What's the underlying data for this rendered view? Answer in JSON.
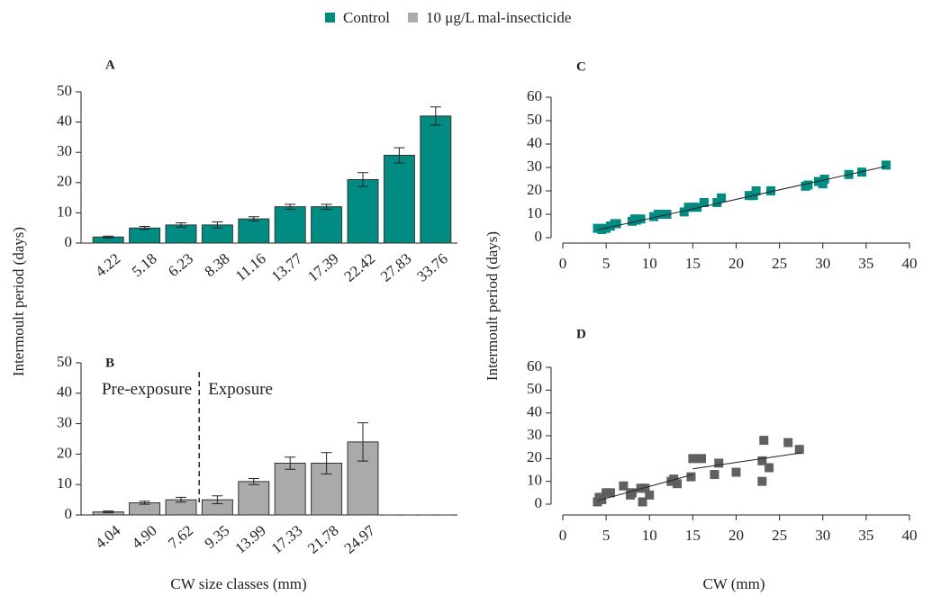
{
  "legend": [
    {
      "name": "Control",
      "color": "#008b83"
    },
    {
      "name": "10 μg/L mal-insecticide",
      "color": "#aaaaaa"
    }
  ],
  "chart_data": [
    {
      "type": "bar",
      "title": "A",
      "ylabel": "Intermoult period (days)",
      "color": "#008b83",
      "categories": [
        "4.22",
        "5.18",
        "6.23",
        "8.38",
        "11.16",
        "13.77",
        "17.39",
        "22.42",
        "27.83",
        "33.76"
      ],
      "values": [
        2,
        5,
        6,
        6,
        8,
        12,
        12,
        21,
        29,
        42
      ],
      "errors": [
        0.3,
        0.5,
        0.7,
        1,
        0.7,
        0.8,
        0.8,
        2.3,
        2.5,
        3
      ],
      "ylim": [
        0,
        50
      ],
      "yticks": [
        0,
        10,
        20,
        30,
        40,
        50
      ]
    },
    {
      "type": "bar",
      "title": "B",
      "xlabel": "CW size classes (mm)",
      "color": "#aaaaaa",
      "categories": [
        "4.04",
        "4.90",
        "7.62",
        "9.35",
        "13.99",
        "17.33",
        "21.78",
        "24.97",
        null,
        null
      ],
      "values": [
        1,
        4,
        5,
        5,
        11,
        17,
        17,
        24,
        0,
        0
      ],
      "errors": [
        0.3,
        0.5,
        0.8,
        1.3,
        1,
        2,
        3.5,
        6.3,
        0,
        0
      ],
      "annotations": [
        "Pre-exposure",
        "Exposure"
      ],
      "ylim": [
        0,
        50
      ],
      "yticks": [
        0,
        10,
        20,
        30,
        40,
        50
      ]
    },
    {
      "type": "scatter",
      "title": "C",
      "ylabel": "Intermoult period (days)",
      "color": "#008b83",
      "x": [
        4,
        4.5,
        5,
        5.5,
        6,
        6.2,
        8,
        8.3,
        8.5,
        9,
        10.5,
        11,
        11.5,
        12,
        14,
        14.5,
        15,
        15.5,
        16.3,
        17.8,
        18.3,
        21.5,
        22,
        22.3,
        24,
        28,
        28.3,
        29.5,
        30,
        30.2,
        33,
        34.5,
        37.3
      ],
      "y": [
        4,
        3.5,
        4,
        5,
        6,
        6,
        7,
        8,
        7.5,
        8,
        9,
        10,
        10,
        10,
        11,
        13,
        13,
        13,
        15,
        15,
        17,
        18,
        18,
        20,
        20,
        22,
        22.5,
        24,
        23,
        25,
        27,
        28,
        31
      ],
      "trendlines": [
        {
          "x": [
            4,
            37.3
          ],
          "y": [
            3.3,
            30.5
          ]
        }
      ],
      "xlim": [
        0,
        40
      ],
      "xticks": [
        0,
        5,
        10,
        15,
        20,
        25,
        30,
        35,
        40
      ],
      "ylim": [
        0,
        60
      ],
      "yticks": [
        0,
        10,
        20,
        30,
        40,
        50,
        60
      ]
    },
    {
      "type": "scatter",
      "title": "D",
      "xlabel": "CW (mm)",
      "color": "#606060",
      "x": [
        4,
        4.2,
        4.5,
        5,
        5.5,
        7,
        7.8,
        8,
        9,
        9.2,
        9.5,
        10,
        12.5,
        12.8,
        13.2,
        14.8,
        15,
        16,
        17.5,
        18,
        20,
        23,
        23,
        23.2,
        23.8,
        26,
        27.3
      ],
      "y": [
        1,
        3,
        2,
        5,
        5,
        8,
        4,
        5,
        7,
        1,
        7,
        4,
        10,
        11,
        9,
        12,
        20,
        20,
        13,
        18,
        14,
        10,
        19,
        28,
        16,
        27,
        24
      ],
      "trendlines": [
        {
          "x": [
            4,
            15
          ],
          "y": [
            1.5,
            13
          ]
        },
        {
          "x": [
            15,
            27.5
          ],
          "y": [
            15.5,
            22.5
          ]
        }
      ],
      "xlim": [
        0,
        40
      ],
      "xticks": [
        0,
        5,
        10,
        15,
        20,
        25,
        30,
        35,
        40
      ],
      "ylim": [
        0,
        60
      ],
      "yticks": [
        0,
        10,
        20,
        30,
        40,
        50,
        60
      ]
    }
  ]
}
